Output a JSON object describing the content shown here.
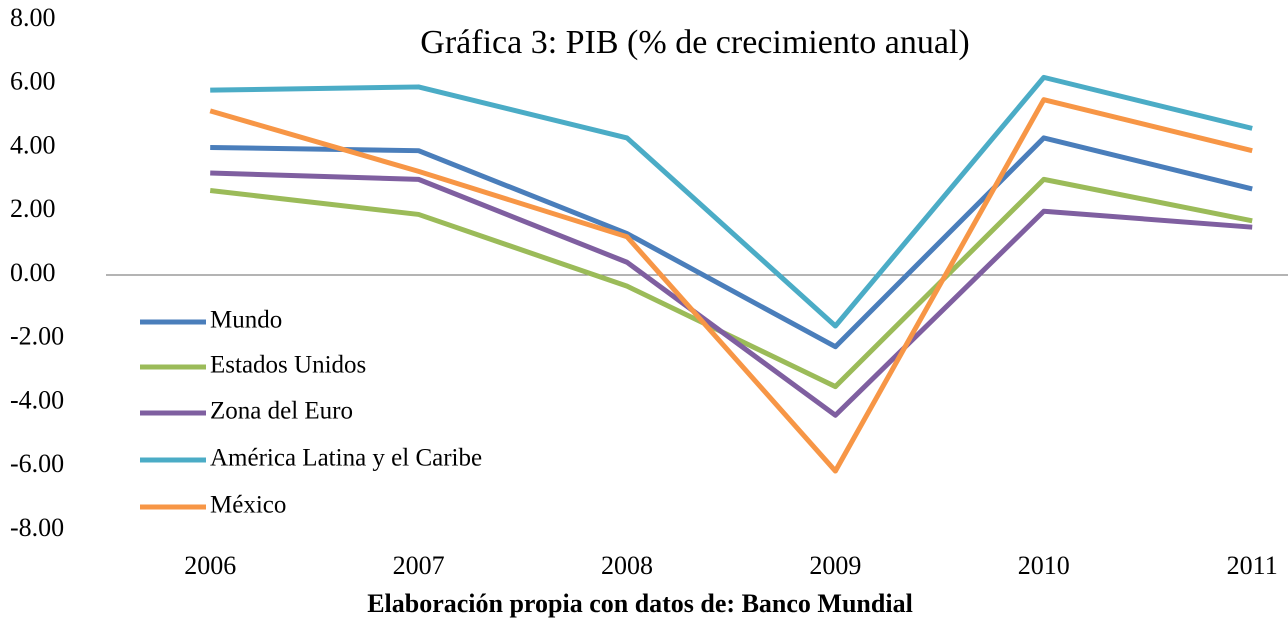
{
  "chart_data": {
    "type": "line",
    "title": "Gráfica 3: PIB (% de crecimiento anual)",
    "xlabel": "Elaboración propia con datos de: Banco Mundial",
    "categories": [
      "2006",
      "2007",
      "2008",
      "2009",
      "2010",
      "2011"
    ],
    "series": [
      {
        "name": "Mundo",
        "color": "#4a7ebb",
        "values": [
          4.0,
          3.9,
          1.3,
          -2.25,
          4.3,
          2.7
        ]
      },
      {
        "name": "Estados Unidos",
        "color": "#9bbb59",
        "values": [
          2.65,
          1.9,
          -0.35,
          -3.5,
          3.0,
          1.7
        ]
      },
      {
        "name": "Zona del Euro",
        "color": "#7f5fa0",
        "values": [
          3.2,
          3.0,
          0.4,
          -4.4,
          2.0,
          1.5
        ]
      },
      {
        "name": "América Latina y el Caribe",
        "color": "#4bacc6",
        "values": [
          5.8,
          5.9,
          4.3,
          -1.6,
          6.2,
          4.6
        ]
      },
      {
        "name": "México",
        "color": "#f79646",
        "values": [
          5.15,
          3.25,
          1.2,
          -6.15,
          5.5,
          3.9
        ]
      }
    ],
    "ylim": [
      -8,
      8
    ],
    "yticks": [
      {
        "value": 8,
        "label": "8.00"
      },
      {
        "value": 6,
        "label": "6.00"
      },
      {
        "value": 4,
        "label": "4.00"
      },
      {
        "value": 2,
        "label": "2.00"
      },
      {
        "value": 0,
        "label": "0.00"
      },
      {
        "value": -2,
        "label": "-2.00"
      },
      {
        "value": -4,
        "label": "-4.00"
      },
      {
        "value": -6,
        "label": "-6.00"
      },
      {
        "value": -8,
        "label": "-8.00"
      }
    ],
    "legend": "left"
  }
}
